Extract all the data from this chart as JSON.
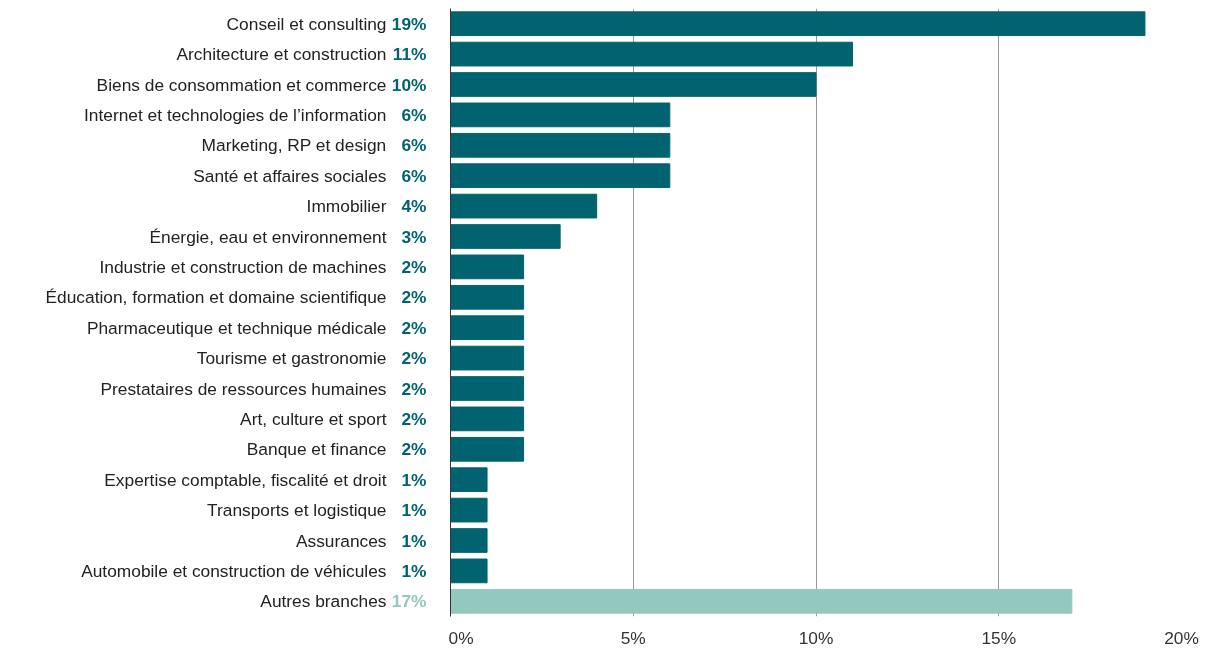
{
  "chart_data": {
    "type": "bar",
    "orientation": "horizontal",
    "categories": [
      "Conseil et consulting",
      "Architecture et construction",
      "Biens de consommation et commerce",
      "Internet et technologies de l’information",
      "Marketing, RP et design",
      "Santé et affaires sociales",
      "Immobilier",
      "Énergie, eau et environnement",
      "Industrie et construction de machines",
      "Éducation, formation et domaine scientifique",
      "Pharmaceutique et technique médicale",
      "Tourisme et gastronomie",
      "Prestataires de ressources humaines",
      "Art, culture et sport",
      "Banque et finance",
      "Expertise comptable, fiscalité et droit",
      "Transports et logistique",
      "Assurances",
      "Automobile et construction de véhicules",
      "Autres branches"
    ],
    "values": [
      19,
      11,
      10,
      6,
      6,
      6,
      4,
      3,
      2,
      2,
      2,
      2,
      2,
      2,
      2,
      1,
      1,
      1,
      1,
      17
    ],
    "value_labels": [
      "19%",
      "11%",
      "10%",
      "6%",
      "6%",
      "6%",
      "4%",
      "3%",
      "2%",
      "2%",
      "2%",
      "2%",
      "2%",
      "2%",
      "2%",
      "1%",
      "1%",
      "1%",
      "1%",
      "17%"
    ],
    "colors": [
      "#00636f",
      "#00636f",
      "#00636f",
      "#00636f",
      "#00636f",
      "#00636f",
      "#00636f",
      "#00636f",
      "#00636f",
      "#00636f",
      "#00636f",
      "#00636f",
      "#00636f",
      "#00636f",
      "#00636f",
      "#00636f",
      "#00636f",
      "#00636f",
      "#00636f",
      "#93c8bf"
    ],
    "xlim": [
      0,
      20
    ],
    "xticks": [
      {
        "value": 0,
        "label": "0%"
      },
      {
        "value": 5,
        "label": "5%"
      },
      {
        "value": 10,
        "label": "10%"
      },
      {
        "value": 15,
        "label": "15%"
      },
      {
        "value": 20,
        "label": "20%"
      }
    ],
    "grid": "x"
  }
}
